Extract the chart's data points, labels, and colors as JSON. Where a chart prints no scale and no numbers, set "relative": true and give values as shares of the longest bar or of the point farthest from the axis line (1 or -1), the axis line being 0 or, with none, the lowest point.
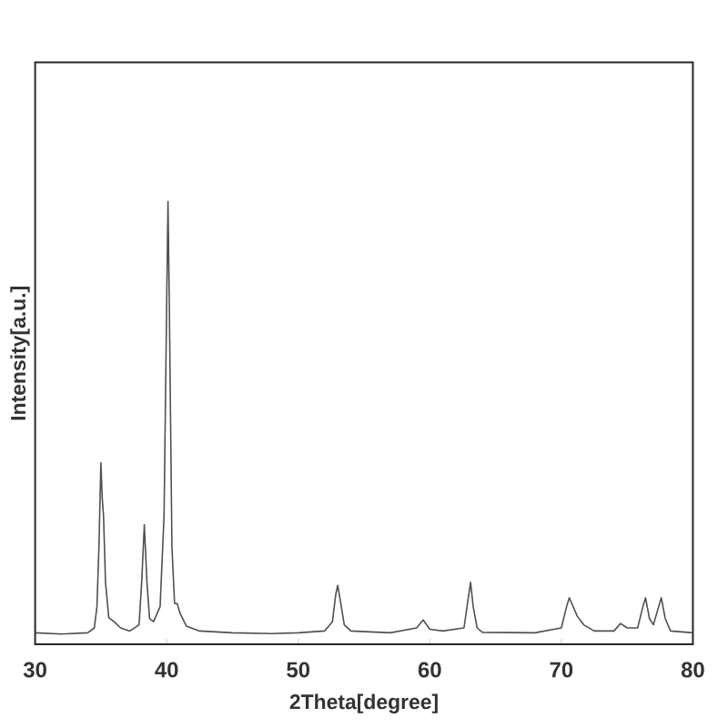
{
  "chart_data": {
    "type": "line",
    "xlabel": "2Theta[degree]",
    "ylabel": "Intensity[a.u.]",
    "relative": true,
    "color": "#505050",
    "xlim": [
      30,
      80
    ],
    "xticks": [
      30,
      40,
      50,
      60,
      70,
      80
    ],
    "x": [
      30,
      32,
      34.0,
      34.5,
      34.7,
      34.85,
      35.0,
      35.1,
      35.2,
      35.35,
      35.6,
      36.0,
      36.5,
      37.2,
      37.9,
      38.1,
      38.3,
      38.5,
      38.7,
      39.0,
      39.5,
      39.8,
      40.0,
      40.1,
      40.2,
      40.4,
      40.6,
      40.8,
      41.0,
      41.5,
      42.5,
      45,
      48,
      50,
      52,
      52.6,
      52.85,
      53.0,
      53.2,
      53.5,
      54.0,
      57,
      59.0,
      59.5,
      60.0,
      61,
      62.6,
      62.9,
      63.1,
      63.3,
      63.6,
      64,
      68,
      70.0,
      70.4,
      70.6,
      70.8,
      71.2,
      71.7,
      72.5,
      74,
      74.5,
      75,
      75.8,
      76.2,
      76.4,
      76.7,
      77.0,
      77.4,
      77.6,
      77.9,
      78.3,
      80
    ],
    "values": [
      0.026,
      0.023,
      0.026,
      0.037,
      0.085,
      0.22,
      0.41,
      0.33,
      0.29,
      0.14,
      0.06,
      0.051,
      0.037,
      0.03,
      0.044,
      0.14,
      0.27,
      0.14,
      0.058,
      0.051,
      0.085,
      0.29,
      0.77,
      1.0,
      0.77,
      0.22,
      0.092,
      0.092,
      0.071,
      0.041,
      0.03,
      0.026,
      0.024,
      0.026,
      0.03,
      0.051,
      0.112,
      0.133,
      0.099,
      0.044,
      0.03,
      0.026,
      0.037,
      0.055,
      0.034,
      0.03,
      0.037,
      0.099,
      0.14,
      0.085,
      0.037,
      0.027,
      0.026,
      0.037,
      0.085,
      0.105,
      0.092,
      0.064,
      0.044,
      0.03,
      0.03,
      0.047,
      0.037,
      0.037,
      0.085,
      0.105,
      0.058,
      0.044,
      0.085,
      0.105,
      0.058,
      0.03,
      0.026
    ]
  }
}
